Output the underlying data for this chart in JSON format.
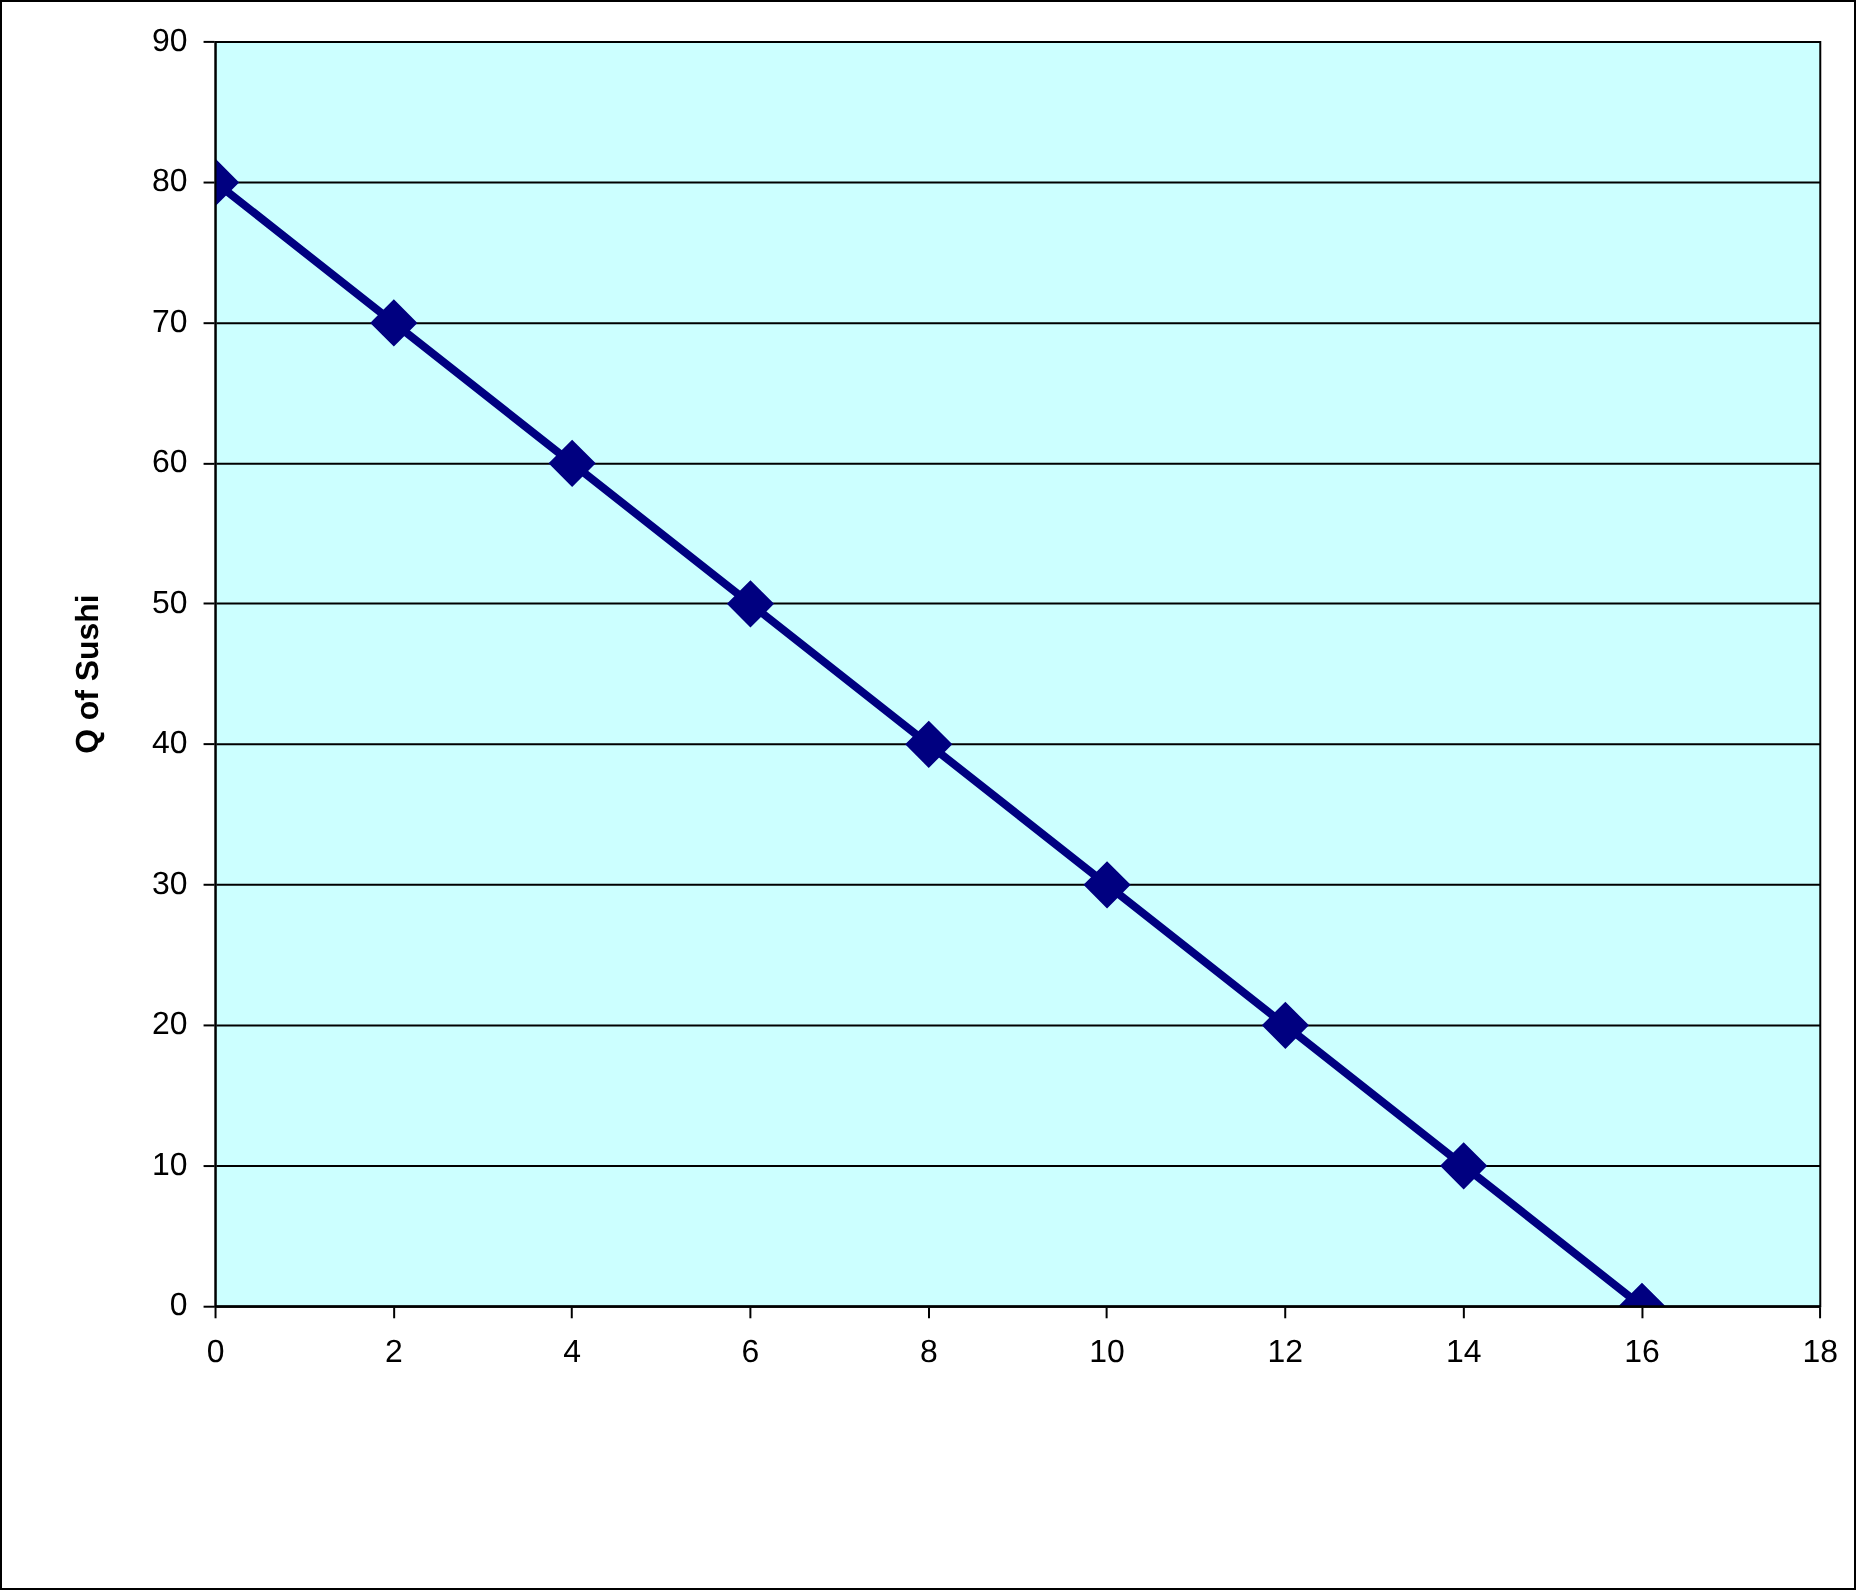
{
  "chart_data": {
    "type": "line",
    "ylabel": "Q of Sushi",
    "x": [
      0,
      2,
      4,
      6,
      8,
      10,
      12,
      14,
      16
    ],
    "series": [
      {
        "color": "#000080",
        "values": [
          80,
          70,
          60,
          50,
          40,
          30,
          20,
          10,
          0
        ]
      }
    ],
    "xlim": [
      0,
      18
    ],
    "xticks": [
      0,
      2,
      4,
      6,
      8,
      10,
      12,
      14,
      16,
      18
    ],
    "ylim": [
      0,
      90
    ],
    "yticks": [
      0,
      10,
      20,
      30,
      40,
      50,
      60,
      70,
      80,
      90
    ],
    "grid": "y",
    "marker": "diamond",
    "line_style": "solid",
    "legend": false
  }
}
